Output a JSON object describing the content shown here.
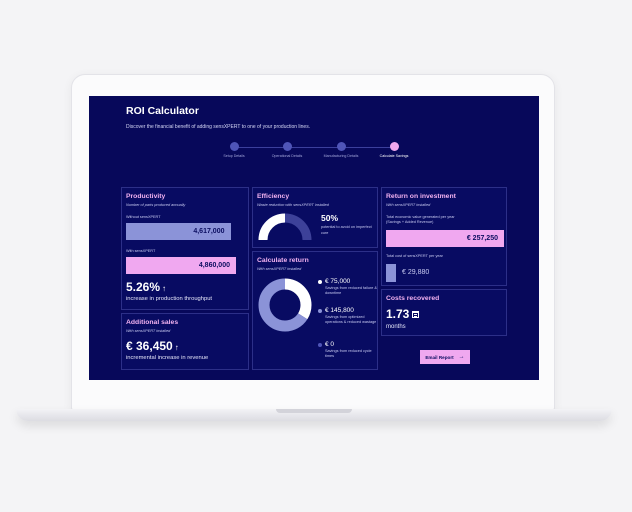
{
  "app": {
    "title": "ROI Calculator",
    "subtitle": "Discover the financial benefit of adding sensXPERT to one of your production lines."
  },
  "stepper": {
    "steps": [
      {
        "label": "Setup Details",
        "active": false
      },
      {
        "label": "Operational Details",
        "active": false
      },
      {
        "label": "Manufacturing Details",
        "active": false
      },
      {
        "label": "Calculate Savings",
        "active": true
      }
    ]
  },
  "productivity": {
    "title": "Productivity",
    "subtitle": "Number of parts produced annually",
    "without_label": "Without sensXPERT",
    "without_value": "4,617,000",
    "without_fraction": 0.95,
    "with_label": "With sensXPERT",
    "with_value": "4,860,000",
    "with_fraction": 1.0,
    "increase_value": "5.26%",
    "increase_arrow": "↑",
    "increase_text": "increase in production throughput"
  },
  "additional_sales": {
    "title": "Additional sales",
    "subtitle": "With sensXPERT installed",
    "value": "€ 36,450",
    "arrow": "↑",
    "text": "incremental increase in revenue"
  },
  "efficiency": {
    "title": "Efficiency",
    "subtitle": "Waste reduction with sensXPERT installed",
    "percent": "50%",
    "percent_fraction": 0.5,
    "desc": "potential to avoid on imperfect cure",
    "colors": {
      "filled": "#ffffff",
      "empty": "#3d4199"
    }
  },
  "calculate_return": {
    "title": "Calculate return",
    "subtitle": "With sensXPERT installed",
    "items": [
      {
        "amount": "€ 75,000",
        "value": 75000,
        "text": "Savings from reduced failure & downtime",
        "color": "#ffffff"
      },
      {
        "amount": "€ 145,800",
        "value": 145800,
        "text": "Savings from optimized operations & reduced wastage",
        "color": "#8b93d8"
      },
      {
        "amount": "€ 0",
        "value": 0,
        "text": "Savings from reduced cycle times",
        "color": "#4f55b8"
      }
    ]
  },
  "roi": {
    "title": "Return on investment",
    "subtitle": "With sensXPERT installed",
    "total_label_1": "Total economic value generated per year",
    "total_label_2": "(Savings + Added Revenue)",
    "total_value": "€ 257,250",
    "cost_label": "Total cost of sensXPERT per year",
    "cost_value": "€ 29,880"
  },
  "costs_recovered": {
    "title": "Costs recovered",
    "value": "1.73",
    "unit": "months",
    "icon": "calendar-icon"
  },
  "actions": {
    "email_label": "Email Report",
    "email_arrow": "→"
  }
}
